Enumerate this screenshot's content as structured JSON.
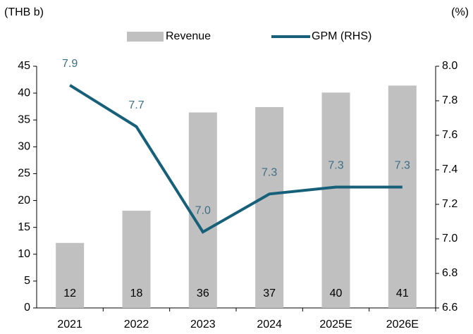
{
  "chart_data": {
    "type": "bar-line",
    "y_label": "(THB b)",
    "y2_label": "(%)",
    "categories": [
      "2021",
      "2022",
      "2023",
      "2024",
      "2025E",
      "2026E"
    ],
    "series": [
      {
        "name": "Revenue",
        "type": "bar",
        "color": "#c0c0c0",
        "axis": "y",
        "values": [
          12.1,
          18.1,
          36.4,
          37.4,
          40.1,
          41.4
        ],
        "value_labels": [
          "12",
          "18",
          "36",
          "37",
          "40",
          "41"
        ]
      },
      {
        "name": "GPM (RHS)",
        "type": "line",
        "color": "#17607a",
        "axis": "y2",
        "values": [
          7.89,
          7.65,
          7.04,
          7.26,
          7.3,
          7.3
        ],
        "value_labels": [
          "7.9",
          "7.7",
          "7.0",
          "7.3",
          "7.3",
          "7.3"
        ]
      }
    ],
    "ylim": [
      0,
      45
    ],
    "yticks": [
      0,
      5,
      10,
      15,
      20,
      25,
      30,
      35,
      40,
      45
    ],
    "y2lim": [
      6.6,
      8.0
    ],
    "y2ticks": [
      6.6,
      6.8,
      {
        "value": 7.0,
        "label": "7.0"
      },
      7.2,
      7.4,
      7.6,
      7.8,
      {
        "value": 8.0,
        "label": "8.0"
      }
    ],
    "grid": false,
    "legend": "top"
  }
}
